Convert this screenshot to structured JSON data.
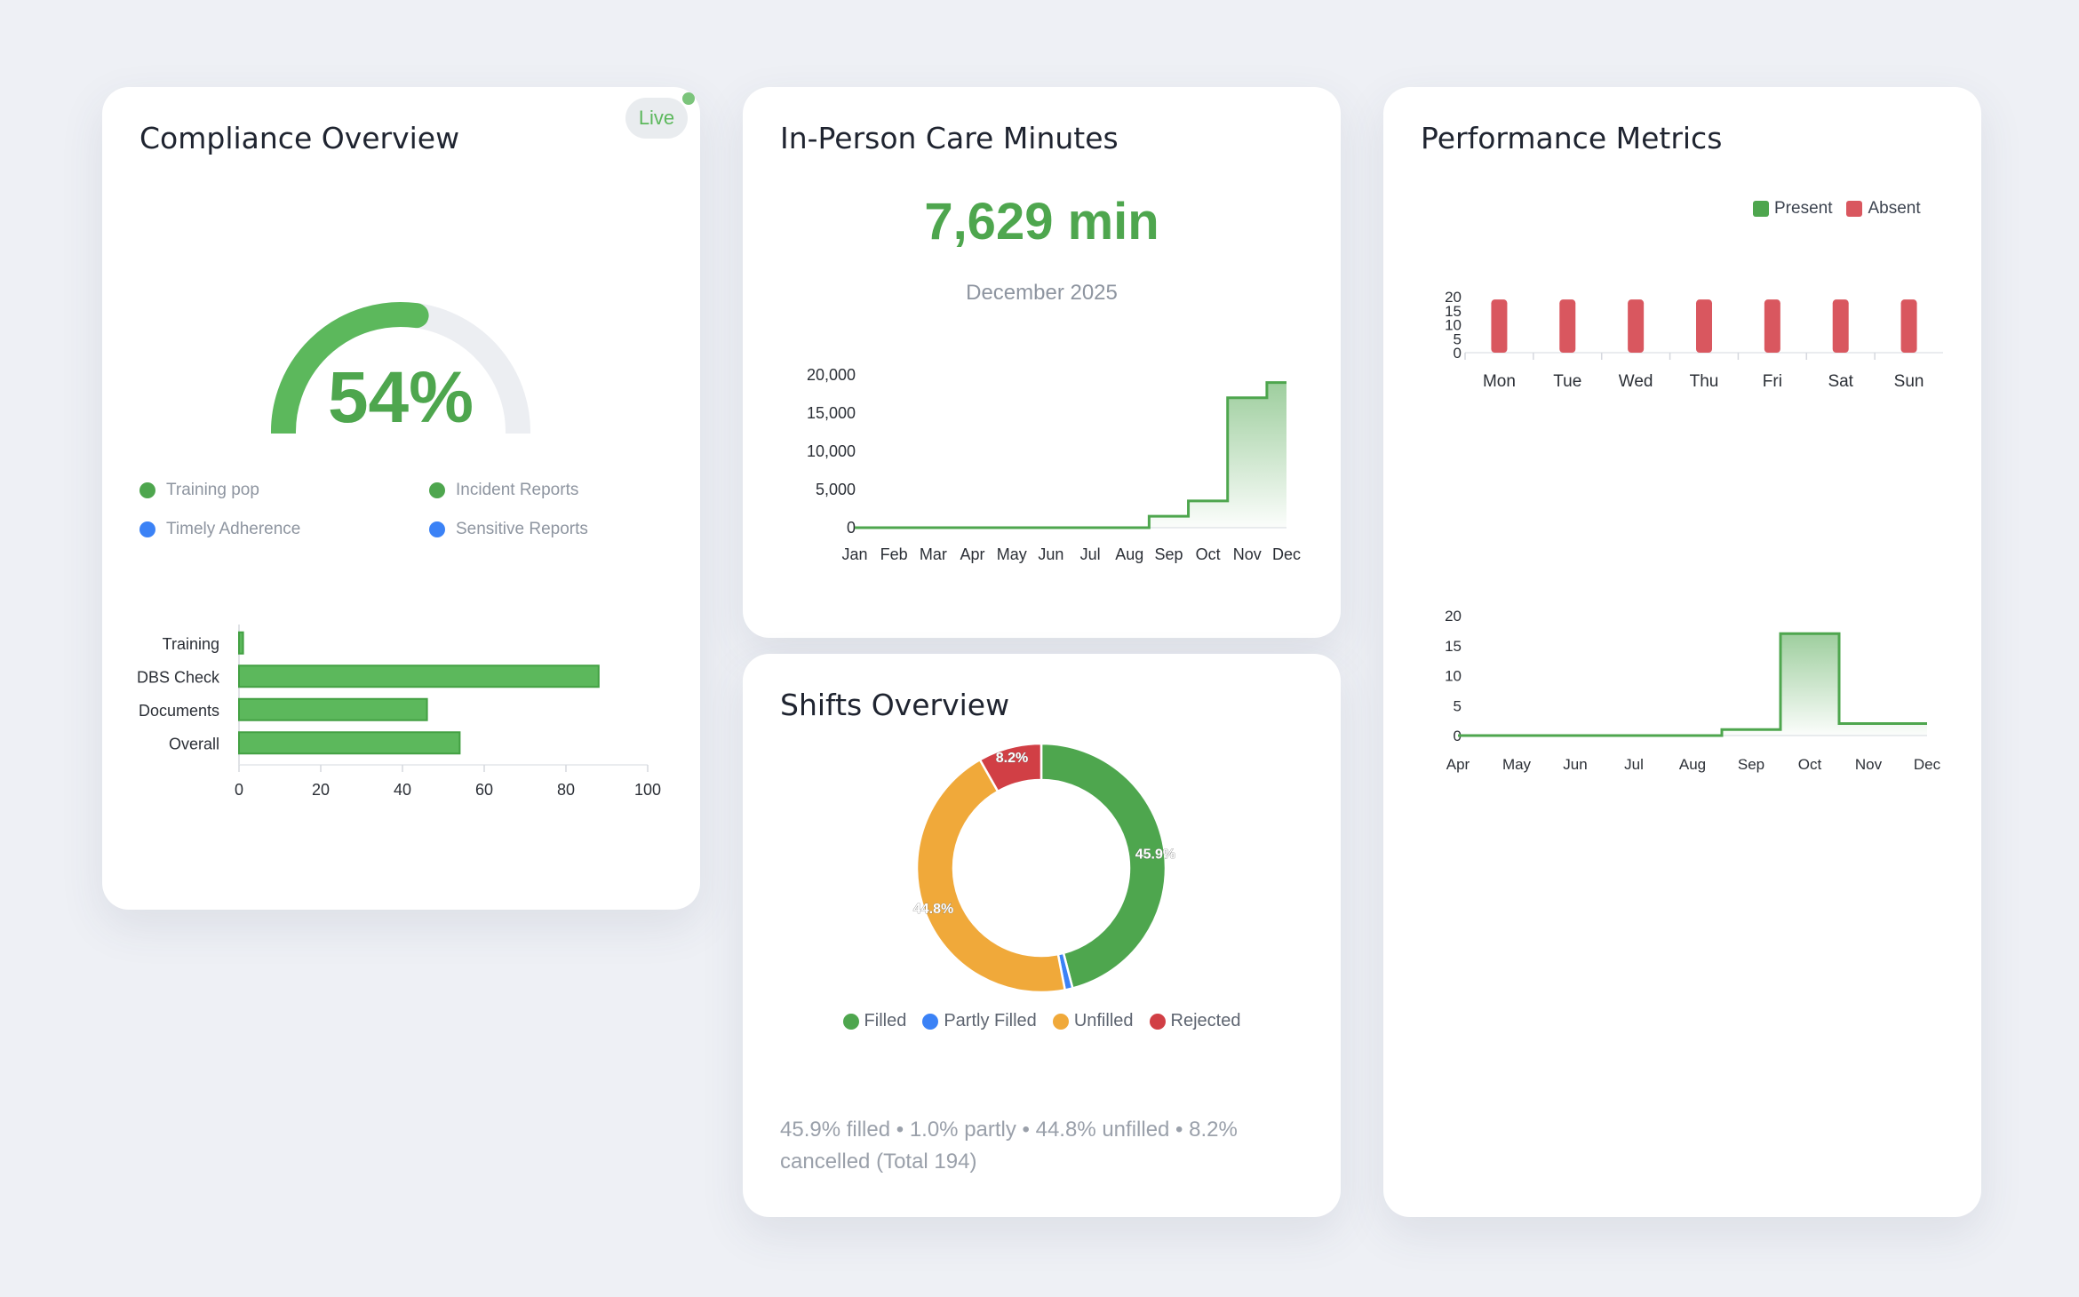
{
  "compliance": {
    "title": "Compliance Overview",
    "live_label": "Live",
    "gauge_value": 54,
    "gauge_label": "54%",
    "legend": [
      {
        "label": "Training pop",
        "color": "#4ea64e"
      },
      {
        "label": "Incident Reports",
        "color": "#4ea64e"
      },
      {
        "label": "Timely Adherence",
        "color": "#3b82f6"
      },
      {
        "label": "Sensitive Reports",
        "color": "#3b82f6"
      }
    ],
    "chart_data": {
      "type": "bar",
      "orientation": "horizontal",
      "categories": [
        "Training",
        "DBS Check",
        "Documents",
        "Overall"
      ],
      "values": [
        1,
        88,
        46,
        54
      ],
      "xlim": [
        0,
        100
      ],
      "xticks": [
        "0",
        "20",
        "40",
        "60",
        "80",
        "100"
      ],
      "color": "#5cb85c"
    }
  },
  "care_minutes": {
    "title": "In-Person Care Minutes",
    "value": "7,629 min",
    "period": "December 2025",
    "chart_data": {
      "type": "line",
      "style": "step-area",
      "x": [
        "Jan",
        "Feb",
        "Mar",
        "Apr",
        "May",
        "Jun",
        "Jul",
        "Aug",
        "Sep",
        "Oct",
        "Nov",
        "Dec"
      ],
      "values": [
        0,
        0,
        0,
        0,
        0,
        0,
        0,
        0,
        1500,
        3500,
        17000,
        19000
      ],
      "ylim": [
        0,
        20000
      ],
      "yticks": [
        "20,000",
        "15,000",
        "10,000",
        "5,000",
        "0"
      ],
      "color": "#4ea64e"
    }
  },
  "shifts": {
    "title": "Shifts Overview",
    "chart_data": {
      "type": "pie",
      "style": "donut",
      "slices": [
        {
          "name": "Filled",
          "value": 45.9,
          "label": "45.9%",
          "color": "#4ea64e"
        },
        {
          "name": "Partly Filled",
          "value": 1.0,
          "label": "",
          "color": "#3b82f6"
        },
        {
          "name": "Unfilled",
          "value": 44.8,
          "label": "44.8%",
          "color": "#f0a93a"
        },
        {
          "name": "Rejected",
          "value": 8.2,
          "label": "8.2%",
          "color": "#d13f45"
        }
      ]
    },
    "summary": "45.9% filled • 1.0% partly • 44.8% unfilled • 8.2% cancelled (Total 194)"
  },
  "performance": {
    "title": "Performance Metrics",
    "legend": [
      {
        "label": "Present",
        "color": "#4ea64e"
      },
      {
        "label": "Absent",
        "color": "#d9575f"
      }
    ],
    "weekly_chart": {
      "type": "bar",
      "categories": [
        "Mon",
        "Tue",
        "Wed",
        "Thu",
        "Fri",
        "Sat",
        "Sun"
      ],
      "series": [
        {
          "name": "Present",
          "values": [
            0,
            0,
            0,
            0,
            0,
            0,
            0
          ],
          "color": "#4ea64e"
        },
        {
          "name": "Absent",
          "values": [
            19,
            19,
            19,
            19,
            19,
            19,
            19
          ],
          "color": "#d9575f"
        }
      ],
      "ylim": [
        0,
        20
      ],
      "yticks": [
        "20",
        "15",
        "10",
        "5",
        "0"
      ]
    },
    "monthly_chart": {
      "type": "line",
      "style": "step-area",
      "x": [
        "Apr",
        "May",
        "Jun",
        "Jul",
        "Aug",
        "Sep",
        "Oct",
        "Nov",
        "Dec"
      ],
      "values": [
        0,
        0,
        0,
        0,
        0,
        1,
        17,
        2,
        2
      ],
      "ylim": [
        0,
        20
      ],
      "yticks": [
        "20",
        "15",
        "10",
        "5",
        "0"
      ],
      "color": "#4ea64e"
    }
  }
}
